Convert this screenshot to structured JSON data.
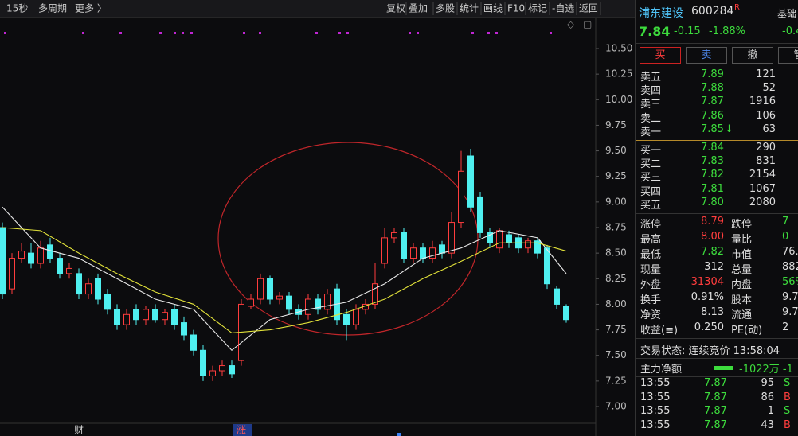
{
  "toolbar": {
    "left": [
      "15秒",
      "多周期",
      "更多 〉"
    ],
    "right": [
      "复权",
      "叠加",
      "多股",
      "统计",
      "画线",
      "F10",
      "标记",
      "-自选",
      "返回"
    ]
  },
  "chart": {
    "yticks": [
      {
        "value": 10.5,
        "label": "10.50"
      },
      {
        "value": 10.25,
        "label": "10.25"
      },
      {
        "value": 10,
        "label": "10.00"
      },
      {
        "value": 9.75,
        "label": "9.75"
      },
      {
        "value": 9.5,
        "label": "9.50"
      },
      {
        "value": 9.25,
        "label": "9.25"
      },
      {
        "value": 9,
        "label": "9.00"
      },
      {
        "value": 8.75,
        "label": "8.75"
      },
      {
        "value": 8.5,
        "label": "8.50"
      },
      {
        "value": 8.25,
        "label": "8.25"
      },
      {
        "value": 8,
        "label": "8.00"
      },
      {
        "value": 7.75,
        "label": "7.75"
      },
      {
        "value": 7.5,
        "label": "7.50"
      },
      {
        "value": 7.25,
        "label": "7.25"
      },
      {
        "value": 7,
        "label": "7.00"
      }
    ],
    "ylim": [
      7,
      10.5
    ],
    "open": [
      8.75,
      8.15,
      8.45,
      8.5,
      8.4,
      8.58,
      8.45,
      8.3,
      8.3,
      8.1,
      8.25,
      8.1,
      7.95,
      7.8,
      7.95,
      7.85,
      7.95,
      7.85,
      7.95,
      7.82,
      7.7,
      7.55,
      7.3,
      7.35,
      7.4,
      7.45,
      7.98,
      8.05,
      8.25,
      8.05,
      8.08,
      7.95,
      7.9,
      8.05,
      7.95,
      8.15,
      7.9,
      7.8,
      7.95,
      8.0,
      8.4,
      8.65,
      8.7,
      8.45,
      8.55,
      8.45,
      8.58,
      8.5,
      8.8,
      9.45,
      9.05,
      8.7,
      8.55,
      8.68,
      8.65,
      8.55,
      8.62,
      8.55,
      8.15,
      7.98
    ],
    "high": [
      8.8,
      8.5,
      8.6,
      8.6,
      8.62,
      8.65,
      8.5,
      8.4,
      8.35,
      8.25,
      8.3,
      8.15,
      8.0,
      7.95,
      8.0,
      7.98,
      8.0,
      7.95,
      8.0,
      7.88,
      7.75,
      7.6,
      7.4,
      7.45,
      7.45,
      8.05,
      8.1,
      8.3,
      8.28,
      8.12,
      8.12,
      8.0,
      8.1,
      8.1,
      8.15,
      8.2,
      7.95,
      8.0,
      8.05,
      8.4,
      8.75,
      8.75,
      8.75,
      8.6,
      8.6,
      8.62,
      8.62,
      8.9,
      9.5,
      9.52,
      9.1,
      8.75,
      8.75,
      8.72,
      8.68,
      8.65,
      8.65,
      8.58,
      8.18,
      8.0
    ],
    "low": [
      8.05,
      8.1,
      8.4,
      8.35,
      8.35,
      8.4,
      8.25,
      8.25,
      8.05,
      8.05,
      8.0,
      7.9,
      7.75,
      7.75,
      7.8,
      7.8,
      7.82,
      7.8,
      7.75,
      7.65,
      7.5,
      7.25,
      7.25,
      7.3,
      7.28,
      7.4,
      7.95,
      8.0,
      8.0,
      8.0,
      7.9,
      7.85,
      7.85,
      7.9,
      7.9,
      7.8,
      7.65,
      7.75,
      7.9,
      7.95,
      8.35,
      8.6,
      8.4,
      8.4,
      8.4,
      8.4,
      8.45,
      8.45,
      8.75,
      8.9,
      8.65,
      8.55,
      8.5,
      8.55,
      8.5,
      8.5,
      8.45,
      8.15,
      7.95,
      7.82
    ],
    "close": [
      8.1,
      8.45,
      8.52,
      8.4,
      8.55,
      8.45,
      8.3,
      8.35,
      8.1,
      8.2,
      8.05,
      7.95,
      7.8,
      7.9,
      7.85,
      7.95,
      7.85,
      7.92,
      7.8,
      7.7,
      7.55,
      7.3,
      7.35,
      7.4,
      7.32,
      8.0,
      8.05,
      8.25,
      8.05,
      8.08,
      7.95,
      7.9,
      8.05,
      7.95,
      8.1,
      7.85,
      7.8,
      7.95,
      8.0,
      8.2,
      8.65,
      8.7,
      8.45,
      8.55,
      8.45,
      8.55,
      8.5,
      8.8,
      9.3,
      8.95,
      8.7,
      8.6,
      8.72,
      8.6,
      8.55,
      8.62,
      8.5,
      8.2,
      8.0,
      7.85
    ],
    "ma_index": [
      0,
      4,
      8,
      12,
      16,
      20,
      24,
      28,
      32,
      36,
      40,
      44,
      48,
      52,
      56,
      59
    ],
    "ma_white": [
      8.95,
      8.55,
      8.45,
      8.25,
      8.05,
      7.95,
      7.55,
      7.85,
      7.95,
      8.02,
      8.2,
      8.45,
      8.55,
      8.72,
      8.65,
      8.3
    ],
    "ma_yellow": [
      8.75,
      8.72,
      8.5,
      8.3,
      8.12,
      8.0,
      7.72,
      7.75,
      7.82,
      7.92,
      8.05,
      8.25,
      8.42,
      8.6,
      8.6,
      8.52
    ],
    "markers": [
      "财",
      "涨"
    ]
  },
  "quote": {
    "name": "浦东建设",
    "code": "600284",
    "flag": "R",
    "tab": "基础",
    "price": "7.84",
    "change": "-0.15",
    "pct": "-1.88%",
    "extra": "-0.4",
    "buttons": [
      "买",
      "卖",
      "撤",
      "管"
    ],
    "asks": [
      [
        "卖五",
        "7.89",
        "121",
        ""
      ],
      [
        "卖四",
        "7.88",
        "52",
        ""
      ],
      [
        "卖三",
        "7.87",
        "1916",
        ""
      ],
      [
        "卖二",
        "7.86",
        "106",
        ""
      ],
      [
        "卖一",
        "7.85",
        "63",
        "↓"
      ]
    ],
    "bids": [
      [
        "买一",
        "7.84",
        "290",
        ""
      ],
      [
        "买二",
        "7.83",
        "831",
        ""
      ],
      [
        "买三",
        "7.82",
        "2154",
        ""
      ],
      [
        "买四",
        "7.81",
        "1067",
        ""
      ],
      [
        "买五",
        "7.80",
        "2080",
        ""
      ]
    ],
    "stats": [
      [
        "涨停",
        "8.79",
        "跌停",
        "7"
      ],
      [
        "最高",
        "8.00",
        "量比",
        "0"
      ],
      [
        "最低",
        "7.82",
        "市值",
        "76."
      ],
      [
        "现量",
        "312",
        "总量",
        "882"
      ],
      [
        "外盘",
        "31304",
        "内盘",
        "56%"
      ],
      [
        "换手",
        "0.91%",
        "股本",
        "9.7"
      ],
      [
        "净资",
        "8.13",
        "流通",
        "9.7"
      ],
      [
        "收益(≡)",
        "0.250",
        "PE(动)",
        "2"
      ]
    ],
    "status": "交易状态: 连续竞价 13:58:04",
    "flow_label": "主力净额",
    "flow_value": "-1022万 -1",
    "trades": [
      [
        "13:55",
        "7.87",
        "95",
        "S"
      ],
      [
        "13:55",
        "7.87",
        "86",
        "B"
      ],
      [
        "13:55",
        "7.87",
        "1",
        "S"
      ],
      [
        "13:55",
        "7.87",
        "43",
        "B"
      ]
    ]
  }
}
